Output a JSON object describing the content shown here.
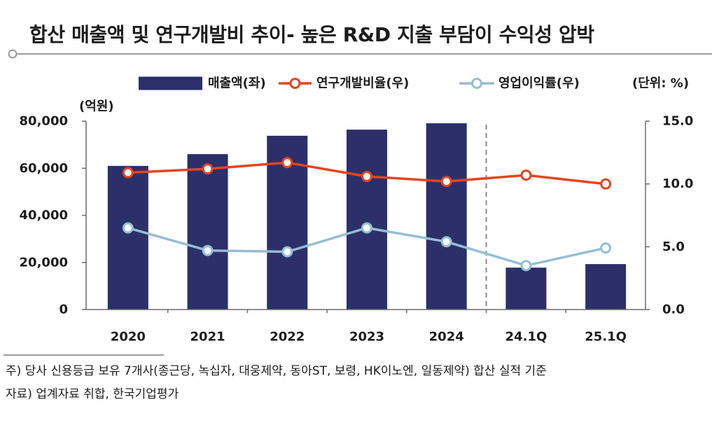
{
  "chart_data": {
    "type": "bar",
    "title": "합산 매출액 및 연구개발비 추이- 높은 R&D 지출 부담이 수익성 압박",
    "categories": [
      "2020",
      "2021",
      "2022",
      "2023",
      "2024",
      "24.1Q",
      "25.1Q"
    ],
    "series": [
      {
        "name": "매출액(좌)",
        "type": "bar",
        "axis": "left",
        "color": "#2d2f6b",
        "values": [
          61000,
          66000,
          73800,
          76400,
          79100,
          17800,
          19300
        ]
      },
      {
        "name": "연구개발비율(우)",
        "type": "line",
        "axis": "right",
        "color": "#e3451f",
        "values": [
          10.9,
          11.2,
          11.7,
          10.6,
          10.2,
          10.7,
          10.0
        ]
      },
      {
        "name": "영업이익률(우)",
        "type": "line",
        "axis": "right",
        "color": "#94bed4",
        "values": [
          6.5,
          4.7,
          4.6,
          6.5,
          5.4,
          3.5,
          4.9
        ]
      }
    ],
    "ylabel": "(억원)",
    "y2label": "(단위: %)",
    "ylim": [
      0,
      80000
    ],
    "y2lim": [
      0,
      15
    ],
    "yticks": [
      "0",
      "20,000",
      "40,000",
      "60,000",
      "80,000"
    ],
    "y2ticks": [
      "0.0",
      "5.0",
      "10.0",
      "15.0"
    ],
    "legend_position": "top",
    "grid": false
  },
  "footnotes": [
    "주) 당사 신용등급 보유 7개사(종근당, 녹십자, 대웅제약, 동아ST, 보령, HK이노엔, 일동제약) 합산 실적 기준",
    "자료) 업계자료 취합, 한국기업평가"
  ],
  "colors": {
    "text": "#1c1c1c",
    "axis": "#6b6b6b",
    "rule": "#9c9c9c",
    "separator": "#8a8a8a"
  }
}
